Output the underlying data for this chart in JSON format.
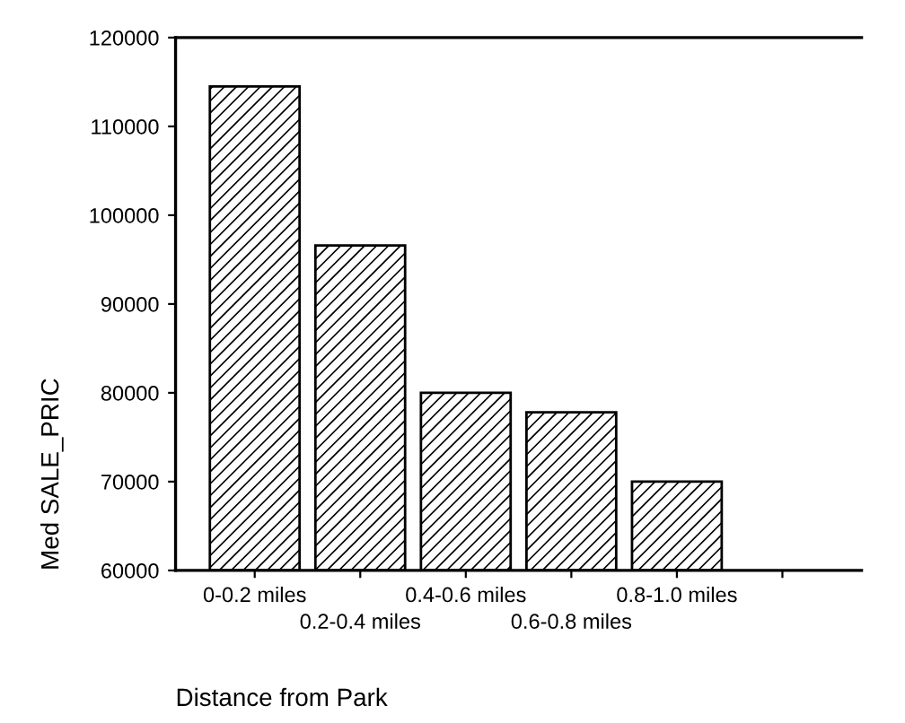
{
  "chart_data": {
    "type": "bar",
    "xlabel": "Distance from Park",
    "ylabel": "Med SALE_PRIC",
    "categories": [
      "0-0.2 miles",
      "0.2-0.4 miles",
      "0.4-0.6 miles",
      "0.6-0.8 miles",
      "0.8-1.0 miles",
      null
    ],
    "values": [
      114500,
      96600,
      80000,
      77800,
      70000,
      null
    ],
    "color": "#000000",
    "ylim": [
      60000,
      120000
    ],
    "yticks": [
      60000,
      70000,
      80000,
      90000,
      100000,
      110000,
      120000
    ],
    "grid": false,
    "legend": false
  }
}
